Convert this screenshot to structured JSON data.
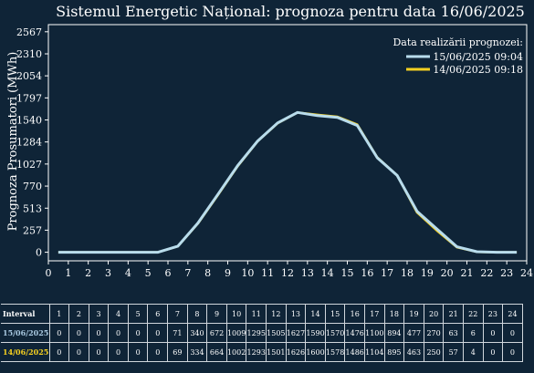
{
  "chart_data": {
    "type": "line",
    "title": "Sistemul Energetic Național: prognoza pentru data 16/06/2025",
    "ylabel": "Prognoza Prosumatori (MWh)",
    "xlabel": "",
    "xlim": [
      0,
      24
    ],
    "ylim": [
      -100,
      2650
    ],
    "x_ticks": [
      "0",
      "1",
      "2",
      "3",
      "4",
      "5",
      "6",
      "7",
      "8",
      "9",
      "10",
      "11",
      "12",
      "13",
      "14",
      "15",
      "16",
      "17",
      "18",
      "19",
      "20",
      "21",
      "22",
      "23",
      "24"
    ],
    "y_ticks": [
      "0",
      "257",
      "513",
      "770",
      "1027",
      "1284",
      "1540",
      "1797",
      "2054",
      "2310",
      "2567"
    ],
    "y_tick_values": [
      0,
      257,
      513,
      770,
      1027,
      1284,
      1540,
      1797,
      2054,
      2310,
      2567
    ],
    "grid": false,
    "legend_title": "Data realizării prognozei:",
    "legend_position": "top-right",
    "x": [
      0.5,
      1.5,
      2.5,
      3.5,
      4.5,
      5.5,
      6.5,
      7.5,
      8.5,
      9.5,
      10.5,
      11.5,
      12.5,
      13.5,
      14.5,
      15.5,
      16.5,
      17.5,
      18.5,
      19.5,
      20.5,
      21.5,
      22.5,
      23.5
    ],
    "series": [
      {
        "name": "15/06/2025 09:04",
        "color": "#b8dcec",
        "values": [
          0,
          0,
          0,
          0,
          0,
          0,
          71,
          340,
          672,
          1009,
          1295,
          1505,
          1627,
          1590,
          1570,
          1476,
          1100,
          894,
          477,
          270,
          63,
          6,
          0,
          0
        ]
      },
      {
        "name": "14/06/2025 09:18",
        "color": "#f5d020",
        "values": [
          0,
          0,
          0,
          0,
          0,
          0,
          69,
          334,
          664,
          1002,
          1293,
          1501,
          1626,
          1600,
          1578,
          1486,
          1104,
          895,
          463,
          250,
          57,
          4,
          0,
          0
        ]
      }
    ]
  },
  "table": {
    "header_label": "Interval",
    "intervals": [
      "1",
      "2",
      "3",
      "4",
      "5",
      "6",
      "7",
      "8",
      "9",
      "10",
      "11",
      "12",
      "13",
      "14",
      "15",
      "16",
      "17",
      "18",
      "19",
      "20",
      "21",
      "22",
      "23",
      "24"
    ],
    "rows": [
      {
        "label": "15/06/2025",
        "values": [
          "0",
          "0",
          "0",
          "0",
          "0",
          "0",
          "71",
          "340",
          "672",
          "1009",
          "1295",
          "1505",
          "1627",
          "1590",
          "1570",
          "1476",
          "1100",
          "894",
          "477",
          "270",
          "63",
          "6",
          "0",
          "0"
        ]
      },
      {
        "label": "14/06/2025",
        "values": [
          "0",
          "0",
          "0",
          "0",
          "0",
          "0",
          "69",
          "334",
          "664",
          "1002",
          "1293",
          "1501",
          "1626",
          "1600",
          "1578",
          "1486",
          "1104",
          "895",
          "463",
          "250",
          "57",
          "4",
          "0",
          "0"
        ]
      }
    ]
  }
}
